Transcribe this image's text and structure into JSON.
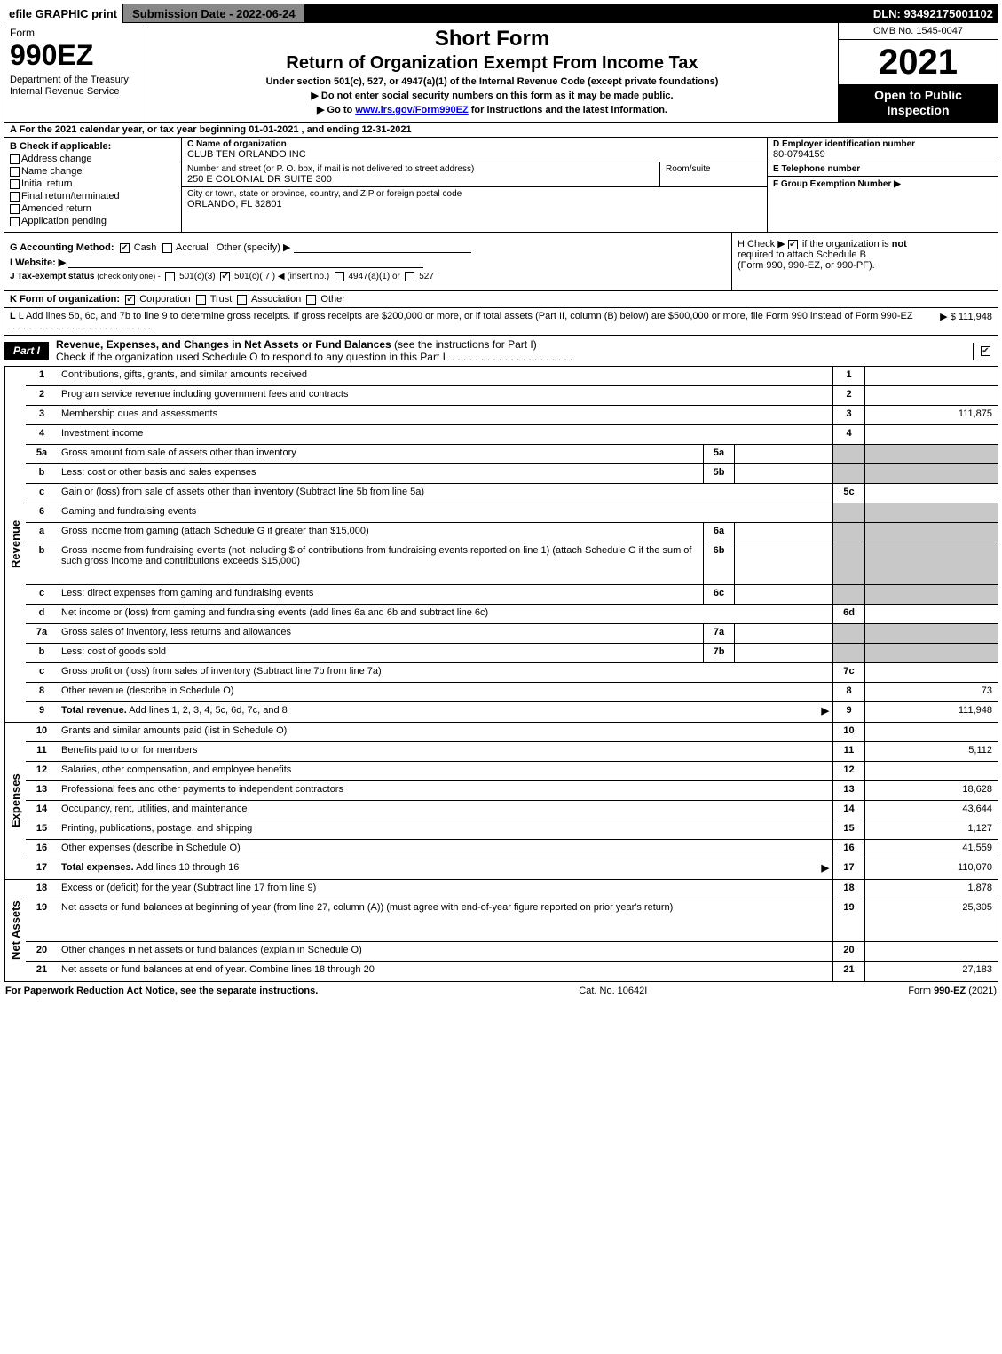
{
  "colors": {
    "black": "#000000",
    "white": "#ffffff",
    "shade": "#c8c8c8",
    "grey_bar": "#888888",
    "link": "#0000ee"
  },
  "topbar": {
    "efile": "efile GRAPHIC print",
    "submission_label": "Submission Date - 2022-06-24",
    "dln": "DLN: 93492175001102"
  },
  "header": {
    "form_word": "Form",
    "form_number": "990EZ",
    "dept": "Department of the Treasury\nInternal Revenue Service",
    "short_form": "Short Form",
    "title": "Return of Organization Exempt From Income Tax",
    "subtitle": "Under section 501(c), 527, or 4947(a)(1) of the Internal Revenue Code (except private foundations)",
    "warn": "▶ Do not enter social security numbers on this form as it may be made public.",
    "goto_pre": "▶ Go to ",
    "goto_link": "www.irs.gov/Form990EZ",
    "goto_post": " for instructions and the latest information.",
    "omb": "OMB No. 1545-0047",
    "year": "2021",
    "open": "Open to Public Inspection"
  },
  "line_a": "A  For the 2021 calendar year, or tax year beginning 01-01-2021 , and ending 12-31-2021",
  "section_b": {
    "hdr": "B  Check if applicable:",
    "opts": [
      "Address change",
      "Name change",
      "Initial return",
      "Final return/terminated",
      "Amended return",
      "Application pending"
    ]
  },
  "section_c": {
    "name_lbl": "C Name of organization",
    "name_val": "CLUB TEN ORLANDO INC",
    "street_lbl": "Number and street (or P. O. box, if mail is not delivered to street address)",
    "street_val": "250 E COLONIAL DR SUITE 300",
    "room_lbl": "Room/suite",
    "city_lbl": "City or town, state or province, country, and ZIP or foreign postal code",
    "city_val": "ORLANDO, FL  32801"
  },
  "section_def": {
    "d_lbl": "D Employer identification number",
    "d_val": "80-0794159",
    "e_lbl": "E Telephone number",
    "e_val": "",
    "f_lbl": "F Group Exemption Number  ▶",
    "f_val": ""
  },
  "section_g": {
    "label": "G Accounting Method:",
    "cash": "Cash",
    "accrual": "Accrual",
    "other": "Other (specify) ▶",
    "cash_checked": true
  },
  "section_h": {
    "text_pre": "H  Check ▶ ",
    "text_post": " if the organization is ",
    "not": "not",
    "line2": "required to attach Schedule B",
    "line3": "(Form 990, 990-EZ, or 990-PF).",
    "checked": true
  },
  "section_i": {
    "label": "I Website: ▶"
  },
  "section_j": {
    "label": "J Tax-exempt status",
    "note": "(check only one) -",
    "o1": "501(c)(3)",
    "o2_pre": "501(c)( 7 ) ◀ (insert no.)",
    "o3": "4947(a)(1) or",
    "o4": "527",
    "o2_checked": true
  },
  "section_k": {
    "label": "K Form of organization:",
    "opts": [
      "Corporation",
      "Trust",
      "Association",
      "Other"
    ],
    "checked_index": 0
  },
  "section_l": {
    "text": "L Add lines 5b, 6c, and 7b to line 9 to determine gross receipts. If gross receipts are $200,000 or more, or if total assets (Part II, column (B) below) are $500,000 or more, file Form 990 instead of Form 990-EZ",
    "arrow": "▶",
    "value": "$ 111,948"
  },
  "part1": {
    "tag": "Part I",
    "title_bold": "Revenue, Expenses, and Changes in Net Assets or Fund Balances",
    "title_rest": " (see the instructions for Part I)",
    "check_line": "Check if the organization used Schedule O to respond to any question in this Part I",
    "end_checked": true
  },
  "revenue_label": "Revenue",
  "expenses_label": "Expenses",
  "netassets_label": "Net Assets",
  "rows_revenue": [
    {
      "n": "1",
      "desc": "Contributions, gifts, grants, and similar amounts received",
      "rn": "1",
      "rv": ""
    },
    {
      "n": "2",
      "desc": "Program service revenue including government fees and contracts",
      "rn": "2",
      "rv": ""
    },
    {
      "n": "3",
      "desc": "Membership dues and assessments",
      "rn": "3",
      "rv": "111,875"
    },
    {
      "n": "4",
      "desc": "Investment income",
      "rn": "4",
      "rv": ""
    },
    {
      "n": "5a",
      "desc": "Gross amount from sale of assets other than inventory",
      "mid_n": "5a",
      "mid_v": "",
      "shade": true
    },
    {
      "n": "b",
      "desc": "Less: cost or other basis and sales expenses",
      "mid_n": "5b",
      "mid_v": "",
      "shade": true
    },
    {
      "n": "c",
      "desc": "Gain or (loss) from sale of assets other than inventory (Subtract line 5b from line 5a)",
      "rn": "5c",
      "rv": ""
    },
    {
      "n": "6",
      "desc": "Gaming and fundraising events",
      "shade": true,
      "noright": true
    },
    {
      "n": "a",
      "desc": "Gross income from gaming (attach Schedule G if greater than $15,000)",
      "mid_n": "6a",
      "mid_v": "",
      "shade": true
    },
    {
      "n": "b",
      "desc": "Gross income from fundraising events (not including $                 of contributions from fundraising events reported on line 1) (attach Schedule G if the sum of such gross income and contributions exceeds $15,000)",
      "mid_n": "6b",
      "mid_v": "",
      "shade": true,
      "tall": true
    },
    {
      "n": "c",
      "desc": "Less: direct expenses from gaming and fundraising events",
      "mid_n": "6c",
      "mid_v": "",
      "shade": true
    },
    {
      "n": "d",
      "desc": "Net income or (loss) from gaming and fundraising events (add lines 6a and 6b and subtract line 6c)",
      "rn": "6d",
      "rv": ""
    },
    {
      "n": "7a",
      "desc": "Gross sales of inventory, less returns and allowances",
      "mid_n": "7a",
      "mid_v": "",
      "shade": true
    },
    {
      "n": "b",
      "desc": "Less: cost of goods sold",
      "mid_n": "7b",
      "mid_v": "",
      "shade": true
    },
    {
      "n": "c",
      "desc": "Gross profit or (loss) from sales of inventory (Subtract line 7b from line 7a)",
      "rn": "7c",
      "rv": ""
    },
    {
      "n": "8",
      "desc": "Other revenue (describe in Schedule O)",
      "rn": "8",
      "rv": "73"
    },
    {
      "n": "9",
      "desc_bold": "Total revenue.",
      "desc": " Add lines 1, 2, 3, 4, 5c, 6d, 7c, and 8",
      "rn": "9",
      "rv": "111,948",
      "arrow": true
    }
  ],
  "rows_expenses": [
    {
      "n": "10",
      "desc": "Grants and similar amounts paid (list in Schedule O)",
      "rn": "10",
      "rv": ""
    },
    {
      "n": "11",
      "desc": "Benefits paid to or for members",
      "rn": "11",
      "rv": "5,112"
    },
    {
      "n": "12",
      "desc": "Salaries, other compensation, and employee benefits",
      "rn": "12",
      "rv": ""
    },
    {
      "n": "13",
      "desc": "Professional fees and other payments to independent contractors",
      "rn": "13",
      "rv": "18,628"
    },
    {
      "n": "14",
      "desc": "Occupancy, rent, utilities, and maintenance",
      "rn": "14",
      "rv": "43,644"
    },
    {
      "n": "15",
      "desc": "Printing, publications, postage, and shipping",
      "rn": "15",
      "rv": "1,127"
    },
    {
      "n": "16",
      "desc": "Other expenses (describe in Schedule O)",
      "rn": "16",
      "rv": "41,559"
    },
    {
      "n": "17",
      "desc_bold": "Total expenses.",
      "desc": " Add lines 10 through 16",
      "rn": "17",
      "rv": "110,070",
      "arrow": true
    }
  ],
  "rows_netassets": [
    {
      "n": "18",
      "desc": "Excess or (deficit) for the year (Subtract line 17 from line 9)",
      "rn": "18",
      "rv": "1,878"
    },
    {
      "n": "19",
      "desc": "Net assets or fund balances at beginning of year (from line 27, column (A)) (must agree with end-of-year figure reported on prior year's return)",
      "rn": "19",
      "rv": "25,305",
      "tall": true
    },
    {
      "n": "20",
      "desc": "Other changes in net assets or fund balances (explain in Schedule O)",
      "rn": "20",
      "rv": ""
    },
    {
      "n": "21",
      "desc": "Net assets or fund balances at end of year. Combine lines 18 through 20",
      "rn": "21",
      "rv": "27,183"
    }
  ],
  "footer": {
    "left": "For Paperwork Reduction Act Notice, see the separate instructions.",
    "mid": "Cat. No. 10642I",
    "right_pre": "Form ",
    "right_form": "990-EZ",
    "right_post": " (2021)"
  }
}
